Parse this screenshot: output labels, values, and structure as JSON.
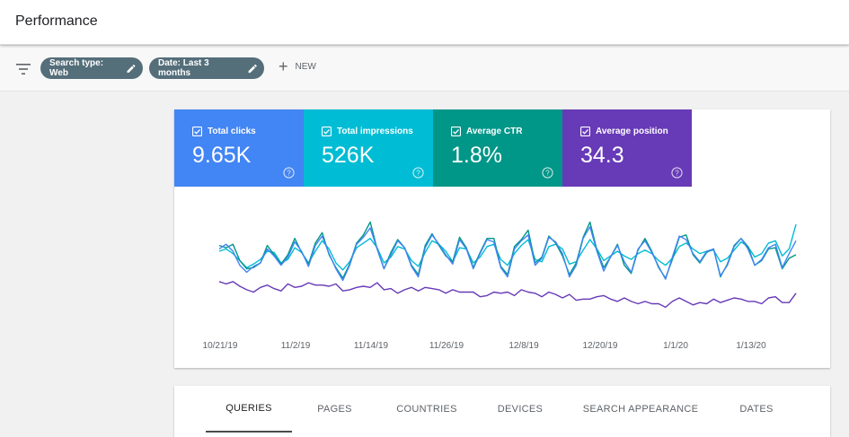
{
  "header": {
    "title": "Performance"
  },
  "filters": {
    "chips": [
      {
        "label": "Search type: Web"
      },
      {
        "label": "Date: Last 3 months"
      }
    ],
    "new_label": "NEW"
  },
  "metrics": [
    {
      "label": "Total clicks",
      "value": "9.65K",
      "color": "#4285f4",
      "checked": true
    },
    {
      "label": "Total impressions",
      "value": "526K",
      "color": "#00bcd4",
      "checked": true
    },
    {
      "label": "Average CTR",
      "value": "1.8%",
      "color": "#009688",
      "checked": true
    },
    {
      "label": "Average position",
      "value": "34.3",
      "color": "#673ab7",
      "checked": true
    }
  ],
  "chart_data": {
    "type": "line",
    "x_tick_labels": [
      "10/21/19",
      "11/2/19",
      "11/14/19",
      "11/26/19",
      "12/8/19",
      "12/20/19",
      "1/1/20",
      "1/13/20"
    ],
    "series": [
      {
        "name": "Total clicks",
        "color": "#4285f4",
        "values": [
          62,
          66,
          60,
          48,
          42,
          47,
          50,
          62,
          56,
          48,
          55,
          68,
          60,
          47,
          65,
          73,
          58,
          45,
          35,
          48,
          66,
          72,
          80,
          62,
          45,
          57,
          69,
          63,
          47,
          38,
          63,
          74,
          66,
          57,
          49,
          70,
          62,
          45,
          58,
          70,
          68,
          46,
          38,
          62,
          69,
          74,
          48,
          54,
          72,
          68,
          58,
          38,
          48,
          71,
          81,
          60,
          43,
          55,
          65,
          51,
          42,
          62,
          69,
          59,
          47,
          36,
          55,
          73,
          70,
          58,
          51,
          60,
          62,
          39,
          48,
          64,
          71,
          62,
          48,
          53,
          63,
          66,
          46,
          58,
          69
        ]
      },
      {
        "name": "Total impressions",
        "color": "#00bcd4",
        "values": [
          60,
          62,
          58,
          52,
          46,
          49,
          53,
          60,
          59,
          50,
          53,
          63,
          59,
          50,
          60,
          69,
          62,
          50,
          44,
          51,
          63,
          67,
          71,
          63,
          50,
          55,
          64,
          62,
          52,
          47,
          59,
          69,
          66,
          60,
          51,
          63,
          62,
          50,
          55,
          64,
          66,
          53,
          48,
          58,
          65,
          70,
          53,
          51,
          64,
          66,
          62,
          49,
          51,
          61,
          70,
          62,
          52,
          56,
          60,
          56,
          53,
          58,
          61,
          58,
          52,
          48,
          54,
          64,
          67,
          62,
          58,
          60,
          61,
          51,
          54,
          61,
          68,
          64,
          55,
          58,
          67,
          69,
          56,
          62,
          83
        ]
      },
      {
        "name": "Average CTR",
        "color": "#009688",
        "values": [
          65,
          63,
          66,
          52,
          45,
          46,
          50,
          65,
          57,
          49,
          57,
          71,
          59,
          49,
          67,
          76,
          57,
          46,
          37,
          49,
          67,
          74,
          85,
          62,
          45,
          59,
          70,
          63,
          48,
          40,
          65,
          75,
          65,
          56,
          51,
          72,
          63,
          46,
          59,
          71,
          71,
          47,
          40,
          64,
          70,
          78,
          50,
          55,
          73,
          67,
          56,
          40,
          50,
          72,
          85,
          61,
          46,
          55,
          66,
          48,
          41,
          61,
          71,
          60,
          46,
          37,
          53,
          72,
          74,
          57,
          50,
          59,
          62,
          38,
          49,
          65,
          71,
          64,
          48,
          52,
          62,
          63,
          45,
          54,
          57
        ]
      },
      {
        "name": "Average position",
        "color": "#673ab7",
        "values": [
          34,
          32,
          34,
          30,
          27,
          25,
          29,
          31,
          28,
          26,
          32,
          29,
          30,
          33,
          31,
          31,
          30,
          32,
          26,
          27,
          29,
          30,
          29,
          33,
          27,
          28,
          24,
          27,
          29,
          26,
          29,
          28,
          27,
          24,
          27,
          25,
          25,
          25,
          21,
          22,
          25,
          24,
          25,
          22,
          27,
          25,
          24,
          21,
          25,
          23,
          20,
          23,
          18,
          19,
          19,
          21,
          22,
          19,
          17,
          20,
          17,
          15,
          17,
          15,
          15,
          12,
          17,
          20,
          17,
          14,
          16,
          15,
          19,
          16,
          18,
          20,
          19,
          17,
          17,
          15,
          20,
          21,
          16,
          16,
          24
        ]
      }
    ]
  },
  "tabs": [
    {
      "label": "QUERIES",
      "active": true
    },
    {
      "label": "PAGES"
    },
    {
      "label": "COUNTRIES"
    },
    {
      "label": "DEVICES"
    },
    {
      "label": "SEARCH APPEARANCE"
    },
    {
      "label": "DATES"
    }
  ]
}
